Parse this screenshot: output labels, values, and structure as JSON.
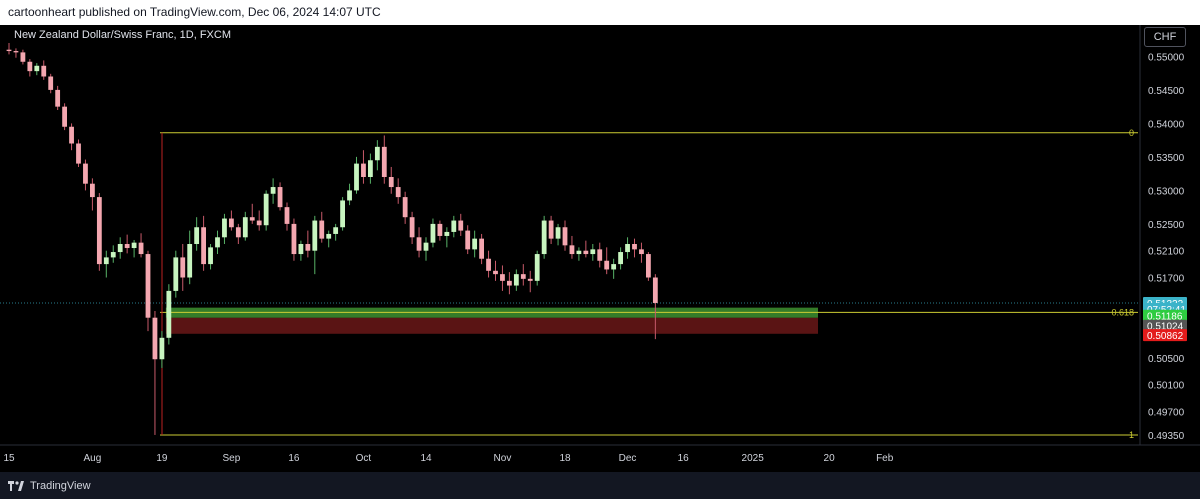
{
  "header": {
    "text": "cartoonheart published on TradingView.com, Dec 06, 2024 14:07 UTC"
  },
  "footer": {
    "brand": "TradingView"
  },
  "chart_title": "New Zealand Dollar/Swiss Franc, 1D, FXCM",
  "currency_label": "CHF",
  "colors": {
    "bull": "#c8f5c0",
    "bear": "#f4a7b0",
    "fib_line": "#cccc33",
    "zone_green": "#3a8a2e",
    "zone_red": "#5a1414",
    "last_price_bg": "#3bb3c9",
    "current_price_bg": "#2ecc40",
    "low_bg": "#e31b1b"
  },
  "chart_data": {
    "type": "candlestick",
    "ylim": [
      0.492,
      0.552
    ],
    "y_ticks": [
      0.55,
      0.545,
      0.54,
      0.535,
      0.53,
      0.525,
      0.521,
      0.517,
      0.505,
      0.501,
      0.497,
      0.4935
    ],
    "y_tick_labels": [
      "0.55000",
      "0.54500",
      "0.54000",
      "0.53500",
      "0.53000",
      "0.52500",
      "0.52100",
      "0.51700",
      "0.50500",
      "0.50100",
      "0.49700",
      "0.49350"
    ],
    "x_labels": [
      {
        "label": "15",
        "slot": 0
      },
      {
        "label": "Aug",
        "slot": 12
      },
      {
        "label": "19",
        "slot": 22
      },
      {
        "label": "Sep",
        "slot": 32
      },
      {
        "label": "16",
        "slot": 41
      },
      {
        "label": "Oct",
        "slot": 51
      },
      {
        "label": "14",
        "slot": 60
      },
      {
        "label": "Nov",
        "slot": 71
      },
      {
        "label": "18",
        "slot": 80
      },
      {
        "label": "Dec",
        "slot": 89
      },
      {
        "label": "16",
        "slot": 97
      },
      {
        "label": "2025",
        "slot": 107
      },
      {
        "label": "20",
        "slot": 118
      },
      {
        "label": "Feb",
        "slot": 126
      }
    ],
    "candles": [
      [
        0.551,
        0.552,
        0.5503,
        0.5508
      ],
      [
        0.5508,
        0.5512,
        0.5498,
        0.5506
      ],
      [
        0.5506,
        0.551,
        0.5488,
        0.5492
      ],
      [
        0.5492,
        0.5496,
        0.547,
        0.5478
      ],
      [
        0.5478,
        0.549,
        0.5472,
        0.5486
      ],
      [
        0.5486,
        0.5494,
        0.5465,
        0.547
      ],
      [
        0.547,
        0.5474,
        0.5445,
        0.545
      ],
      [
        0.545,
        0.5456,
        0.542,
        0.5425
      ],
      [
        0.5425,
        0.543,
        0.539,
        0.5395
      ],
      [
        0.5395,
        0.54,
        0.536,
        0.537
      ],
      [
        0.537,
        0.5376,
        0.5335,
        0.534
      ],
      [
        0.534,
        0.5346,
        0.53,
        0.531
      ],
      [
        0.531,
        0.5318,
        0.527,
        0.529
      ],
      [
        0.529,
        0.5296,
        0.518,
        0.519
      ],
      [
        0.519,
        0.521,
        0.517,
        0.52
      ],
      [
        0.52,
        0.5218,
        0.5192,
        0.5208
      ],
      [
        0.5208,
        0.523,
        0.5198,
        0.522
      ],
      [
        0.522,
        0.5234,
        0.5206,
        0.5214
      ],
      [
        0.5214,
        0.5226,
        0.52,
        0.5222
      ],
      [
        0.5222,
        0.5236,
        0.52,
        0.5205
      ],
      [
        0.5205,
        0.521,
        0.509,
        0.511
      ],
      [
        0.511,
        0.512,
        0.4935,
        0.5048
      ],
      [
        0.5048,
        0.509,
        0.5035,
        0.508
      ],
      [
        0.508,
        0.516,
        0.507,
        0.515
      ],
      [
        0.515,
        0.521,
        0.514,
        0.52
      ],
      [
        0.52,
        0.522,
        0.515,
        0.517
      ],
      [
        0.517,
        0.524,
        0.516,
        0.522
      ],
      [
        0.522,
        0.526,
        0.521,
        0.5245
      ],
      [
        0.5245,
        0.5262,
        0.518,
        0.519
      ],
      [
        0.519,
        0.522,
        0.5182,
        0.5215
      ],
      [
        0.5215,
        0.524,
        0.5205,
        0.523
      ],
      [
        0.523,
        0.5265,
        0.522,
        0.5258
      ],
      [
        0.5258,
        0.527,
        0.524,
        0.5245
      ],
      [
        0.5245,
        0.525,
        0.522,
        0.523
      ],
      [
        0.523,
        0.5268,
        0.5225,
        0.526
      ],
      [
        0.526,
        0.528,
        0.525,
        0.5255
      ],
      [
        0.5255,
        0.527,
        0.524,
        0.5248
      ],
      [
        0.5248,
        0.53,
        0.524,
        0.5295
      ],
      [
        0.5295,
        0.5318,
        0.528,
        0.5305
      ],
      [
        0.5305,
        0.5312,
        0.527,
        0.5275
      ],
      [
        0.5275,
        0.5282,
        0.524,
        0.525
      ],
      [
        0.525,
        0.5258,
        0.5195,
        0.5205
      ],
      [
        0.5205,
        0.5225,
        0.5195,
        0.522
      ],
      [
        0.522,
        0.524,
        0.52,
        0.521
      ],
      [
        0.521,
        0.5262,
        0.5175,
        0.5255
      ],
      [
        0.5255,
        0.5268,
        0.5222,
        0.5228
      ],
      [
        0.5228,
        0.524,
        0.5215,
        0.5235
      ],
      [
        0.5235,
        0.525,
        0.5225,
        0.5245
      ],
      [
        0.5245,
        0.529,
        0.524,
        0.5285
      ],
      [
        0.5285,
        0.531,
        0.5278,
        0.53
      ],
      [
        0.53,
        0.535,
        0.5295,
        0.534
      ],
      [
        0.534,
        0.536,
        0.531,
        0.532
      ],
      [
        0.532,
        0.5355,
        0.531,
        0.5345
      ],
      [
        0.5345,
        0.5375,
        0.533,
        0.5365
      ],
      [
        0.5365,
        0.5382,
        0.531,
        0.532
      ],
      [
        0.532,
        0.5335,
        0.5295,
        0.5305
      ],
      [
        0.5305,
        0.5318,
        0.528,
        0.529
      ],
      [
        0.529,
        0.5298,
        0.525,
        0.526
      ],
      [
        0.526,
        0.5268,
        0.522,
        0.523
      ],
      [
        0.523,
        0.5245,
        0.52,
        0.521
      ],
      [
        0.521,
        0.523,
        0.5195,
        0.5222
      ],
      [
        0.5222,
        0.5258,
        0.5215,
        0.525
      ],
      [
        0.525,
        0.5255,
        0.5225,
        0.5232
      ],
      [
        0.5232,
        0.5245,
        0.5215,
        0.5238
      ],
      [
        0.5238,
        0.5262,
        0.523,
        0.5255
      ],
      [
        0.5255,
        0.5265,
        0.5232,
        0.524
      ],
      [
        0.524,
        0.5248,
        0.5205,
        0.5212
      ],
      [
        0.5212,
        0.524,
        0.52,
        0.5228
      ],
      [
        0.5228,
        0.5235,
        0.519,
        0.5198
      ],
      [
        0.5198,
        0.521,
        0.517,
        0.518
      ],
      [
        0.518,
        0.5195,
        0.5165,
        0.5175
      ],
      [
        0.5175,
        0.5188,
        0.515,
        0.5165
      ],
      [
        0.5165,
        0.5178,
        0.5145,
        0.5158
      ],
      [
        0.5158,
        0.5182,
        0.515,
        0.5175
      ],
      [
        0.5175,
        0.519,
        0.5158,
        0.5168
      ],
      [
        0.5168,
        0.518,
        0.5148,
        0.5165
      ],
      [
        0.5165,
        0.521,
        0.5158,
        0.5205
      ],
      [
        0.5205,
        0.5262,
        0.5198,
        0.5255
      ],
      [
        0.5255,
        0.5262,
        0.522,
        0.5228
      ],
      [
        0.5228,
        0.525,
        0.5218,
        0.5245
      ],
      [
        0.5245,
        0.5255,
        0.521,
        0.5218
      ],
      [
        0.5218,
        0.5232,
        0.5198,
        0.5205
      ],
      [
        0.5205,
        0.5215,
        0.5195,
        0.521
      ],
      [
        0.521,
        0.5225,
        0.52,
        0.5205
      ],
      [
        0.5205,
        0.522,
        0.5195,
        0.5212
      ],
      [
        0.5212,
        0.5222,
        0.5185,
        0.5195
      ],
      [
        0.5195,
        0.5215,
        0.5175,
        0.5182
      ],
      [
        0.5182,
        0.5198,
        0.5168,
        0.519
      ],
      [
        0.519,
        0.5215,
        0.5182,
        0.5208
      ],
      [
        0.5208,
        0.523,
        0.5198,
        0.522
      ],
      [
        0.522,
        0.5228,
        0.52,
        0.5212
      ],
      [
        0.5212,
        0.5222,
        0.5192,
        0.5205
      ],
      [
        0.5205,
        0.5208,
        0.5165,
        0.517
      ],
      [
        0.517,
        0.5175,
        0.5078,
        0.5132
      ]
    ],
    "fib_levels": [
      {
        "label": "0",
        "value": 0.5386
      },
      {
        "label": "0.618",
        "value": 0.5118
      },
      {
        "label": "1",
        "value": 0.4935
      }
    ],
    "zone_green": [
      0.511,
      0.5125
    ],
    "zone_red": [
      0.5086,
      0.511
    ],
    "price_markers": [
      {
        "label": "0.51322",
        "value": 0.5132,
        "bg": "#3bb3c9"
      },
      {
        "label": "07:52:41",
        "value": 0.5123,
        "bg": "#3bb3c9"
      },
      {
        "label": "0.51186",
        "value": 0.5113,
        "bg": "#2ecc40"
      },
      {
        "label": "0.51024",
        "value": 0.5098,
        "bg": "#555555"
      },
      {
        "label": "0.50862",
        "value": 0.5084,
        "bg": "#e31b1b"
      }
    ]
  }
}
